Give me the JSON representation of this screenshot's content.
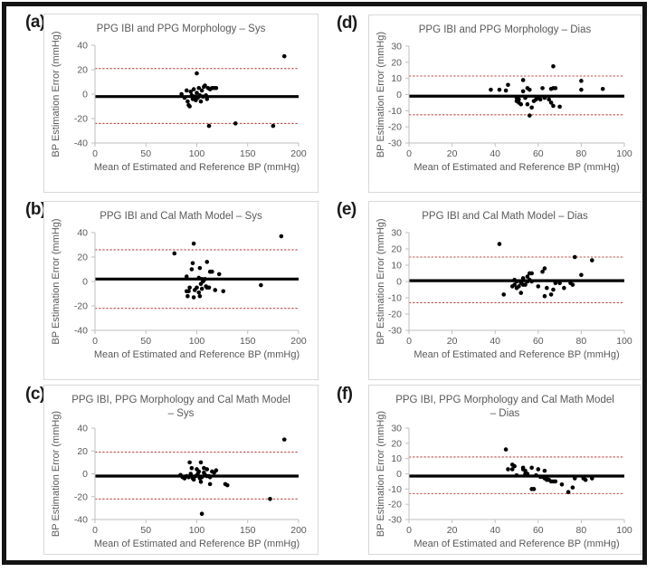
{
  "figure": {
    "x_axis_label": "Mean of Estimated and Reference BP (mmHg)",
    "y_axis_label": "BP Estimation Error (mmHg)",
    "colors": {
      "dot": "#000000",
      "mean_line": "#000000",
      "loa_line": "#c0504d",
      "axis_line": "#bfbfbf",
      "tick_text": "#595959",
      "title_text": "#595959",
      "frame_border": "#141414",
      "box_border": "#d9d9d9"
    }
  },
  "chart_data": [
    {
      "panel": "(a)",
      "type": "scatter",
      "title_line1": "PPG IBI and PPG Morphology – Sys",
      "title_line2": "",
      "xlabel": "Mean of Estimated and Reference BP (mmHg)",
      "ylabel": "BP Estimation Error (mmHg)",
      "xlim": [
        0,
        200
      ],
      "ylim": [
        -40,
        40
      ],
      "xticks": [
        0,
        50,
        100,
        150,
        200
      ],
      "yticks": [
        40,
        20,
        0,
        -20,
        -40
      ],
      "mean_bias": -2,
      "upper_loa": 21,
      "lower_loa": -24,
      "points": [
        [
          85,
          0
        ],
        [
          88,
          -3
        ],
        [
          90,
          3
        ],
        [
          91,
          -6
        ],
        [
          92,
          -9
        ],
        [
          93,
          -10
        ],
        [
          94,
          2
        ],
        [
          95,
          -1
        ],
        [
          96,
          -4
        ],
        [
          97,
          4
        ],
        [
          98,
          -2
        ],
        [
          99,
          -5
        ],
        [
          100,
          17
        ],
        [
          100,
          1
        ],
        [
          101,
          -3
        ],
        [
          102,
          5
        ],
        [
          103,
          -1
        ],
        [
          104,
          -6
        ],
        [
          105,
          3
        ],
        [
          106,
          -2
        ],
        [
          107,
          6
        ],
        [
          108,
          7
        ],
        [
          109,
          -1
        ],
        [
          110,
          -4
        ],
        [
          111,
          5
        ],
        [
          112,
          -26
        ],
        [
          113,
          4
        ],
        [
          115,
          5
        ],
        [
          117,
          5
        ],
        [
          119,
          5
        ],
        [
          138,
          -24
        ],
        [
          175,
          -26
        ],
        [
          186,
          31
        ]
      ]
    },
    {
      "panel": "(b)",
      "type": "scatter",
      "title_line1": "PPG IBI and Cal Math Model – Sys",
      "title_line2": "",
      "xlabel": "Mean of Estimated and Reference BP (mmHg)",
      "ylabel": "BP Estimation Error (mmHg)",
      "xlim": [
        0,
        200
      ],
      "ylim": [
        -40,
        40
      ],
      "xticks": [
        0,
        50,
        100,
        150,
        200
      ],
      "yticks": [
        40,
        20,
        0,
        -20,
        -40
      ],
      "mean_bias": 2,
      "upper_loa": 26,
      "lower_loa": -22,
      "points": [
        [
          78,
          23
        ],
        [
          90,
          4
        ],
        [
          90,
          -8
        ],
        [
          91,
          -12
        ],
        [
          92,
          -8
        ],
        [
          93,
          -5
        ],
        [
          95,
          10
        ],
        [
          96,
          15
        ],
        [
          97,
          31
        ],
        [
          97,
          -13
        ],
        [
          98,
          -7
        ],
        [
          100,
          -5
        ],
        [
          102,
          3
        ],
        [
          102,
          -9
        ],
        [
          103,
          11
        ],
        [
          103,
          -12
        ],
        [
          104,
          -2
        ],
        [
          105,
          2
        ],
        [
          105,
          -6
        ],
        [
          106,
          0
        ],
        [
          107,
          1
        ],
        [
          108,
          2
        ],
        [
          109,
          -4
        ],
        [
          110,
          16
        ],
        [
          110,
          -5
        ],
        [
          112,
          -5
        ],
        [
          113,
          8
        ],
        [
          115,
          8
        ],
        [
          118,
          -7
        ],
        [
          122,
          6
        ],
        [
          126,
          -8
        ],
        [
          163,
          -3
        ],
        [
          183,
          37
        ]
      ]
    },
    {
      "panel": "(c)",
      "type": "scatter",
      "title_line1": "PPG IBI, PPG Morphology and Cal Math Model",
      "title_line2": "– Sys",
      "xlabel": "Mean of Estimated and Reference BP (mmHg)",
      "ylabel": "BP Estimation Error (mmHg)",
      "xlim": [
        0,
        200
      ],
      "ylim": [
        -40,
        40
      ],
      "xticks": [
        0,
        50,
        100,
        150,
        200
      ],
      "yticks": [
        40,
        20,
        0,
        -20,
        -40
      ],
      "mean_bias": -2,
      "upper_loa": 19,
      "lower_loa": -22,
      "points": [
        [
          84,
          -1
        ],
        [
          86,
          -3
        ],
        [
          88,
          -4
        ],
        [
          90,
          -2
        ],
        [
          92,
          -3
        ],
        [
          93,
          10
        ],
        [
          94,
          0
        ],
        [
          95,
          5
        ],
        [
          96,
          -4
        ],
        [
          97,
          -5
        ],
        [
          99,
          -2
        ],
        [
          100,
          4
        ],
        [
          101,
          0
        ],
        [
          102,
          2
        ],
        [
          103,
          -4
        ],
        [
          104,
          10
        ],
        [
          104,
          -7
        ],
        [
          105,
          -35
        ],
        [
          105,
          -3
        ],
        [
          107,
          5
        ],
        [
          107,
          1
        ],
        [
          108,
          -1
        ],
        [
          110,
          4
        ],
        [
          110,
          -2
        ],
        [
          112,
          -2
        ],
        [
          113,
          -9
        ],
        [
          113,
          -3
        ],
        [
          115,
          2
        ],
        [
          117,
          1
        ],
        [
          119,
          3
        ],
        [
          128,
          -9
        ],
        [
          130,
          -10
        ],
        [
          172,
          -22
        ],
        [
          186,
          30
        ]
      ]
    },
    {
      "panel": "(d)",
      "type": "scatter",
      "title_line1": "PPG IBI and PPG Morphology – Dias",
      "title_line2": "",
      "xlabel": "Mean of Estimated and Reference BP (mmHg)",
      "ylabel": "BP Estimation Error (mmHg)",
      "xlim": [
        0,
        100
      ],
      "ylim": [
        -30,
        30
      ],
      "xticks": [
        0,
        20,
        40,
        60,
        80,
        100
      ],
      "yticks": [
        30,
        20,
        10,
        0,
        -10,
        -20,
        -30
      ],
      "mean_bias": -1,
      "upper_loa": 11.5,
      "lower_loa": -12.5,
      "points": [
        [
          38,
          3
        ],
        [
          42,
          3
        ],
        [
          45,
          2.5
        ],
        [
          46,
          6
        ],
        [
          50,
          -2
        ],
        [
          50,
          -4
        ],
        [
          51,
          -3
        ],
        [
          51,
          -5
        ],
        [
          52,
          -6
        ],
        [
          53,
          9
        ],
        [
          53,
          2
        ],
        [
          54,
          -2
        ],
        [
          55,
          4
        ],
        [
          55,
          -6
        ],
        [
          56,
          3
        ],
        [
          56,
          -13
        ],
        [
          57,
          -8
        ],
        [
          58,
          -4
        ],
        [
          59,
          -3
        ],
        [
          60,
          -2
        ],
        [
          61,
          -3
        ],
        [
          62,
          4
        ],
        [
          63,
          -2
        ],
        [
          65,
          -3
        ],
        [
          66,
          3.5
        ],
        [
          66,
          -5
        ],
        [
          67,
          17.5
        ],
        [
          67,
          4
        ],
        [
          67,
          -7
        ],
        [
          68,
          4
        ],
        [
          70,
          -7.5
        ],
        [
          80,
          8.5
        ],
        [
          80,
          3
        ],
        [
          90,
          3.5
        ]
      ]
    },
    {
      "panel": "(e)",
      "type": "scatter",
      "title_line1": "PPG IBI and Cal Math Model – Dias",
      "title_line2": "",
      "xlabel": "Mean of Estimated and Reference BP (mmHg)",
      "ylabel": "BP Estimation Error (mmHg)",
      "xlim": [
        0,
        100
      ],
      "ylim": [
        -30,
        30
      ],
      "xticks": [
        0,
        20,
        40,
        60,
        80,
        100
      ],
      "yticks": [
        30,
        20,
        10,
        0,
        -10,
        -20,
        -30
      ],
      "mean_bias": 0.5,
      "upper_loa": 15,
      "lower_loa": -13,
      "points": [
        [
          42,
          23
        ],
        [
          44,
          -8
        ],
        [
          48,
          -3
        ],
        [
          49,
          1
        ],
        [
          49,
          -2
        ],
        [
          50,
          0
        ],
        [
          50,
          -4
        ],
        [
          51,
          -3
        ],
        [
          52,
          -1
        ],
        [
          52,
          -7
        ],
        [
          53,
          2
        ],
        [
          53,
          -2
        ],
        [
          54,
          -2
        ],
        [
          55,
          3
        ],
        [
          55,
          0
        ],
        [
          56,
          5
        ],
        [
          56,
          1
        ],
        [
          57,
          5
        ],
        [
          57,
          0
        ],
        [
          60,
          -3
        ],
        [
          62,
          6
        ],
        [
          63,
          8
        ],
        [
          63,
          -9
        ],
        [
          64,
          -4
        ],
        [
          66,
          -8
        ],
        [
          67,
          -5
        ],
        [
          68,
          -1
        ],
        [
          70,
          -1
        ],
        [
          72,
          -4
        ],
        [
          75,
          -1
        ],
        [
          76,
          -2
        ],
        [
          77,
          15
        ],
        [
          80,
          4
        ],
        [
          85,
          13
        ]
      ]
    },
    {
      "panel": "(f)",
      "type": "scatter",
      "title_line1": "PPG IBI, PPG Morphology and Cal Math Model",
      "title_line2": "– Dias",
      "xlabel": "Mean of Estimated and Reference BP (mmHg)",
      "ylabel": "BP Estimation Error (mmHg)",
      "xlim": [
        0,
        100
      ],
      "ylim": [
        -30,
        30
      ],
      "xticks": [
        0,
        20,
        40,
        60,
        80,
        100
      ],
      "yticks": [
        30,
        20,
        10,
        0,
        -10,
        -20,
        -30
      ],
      "mean_bias": -1.5,
      "upper_loa": 11,
      "lower_loa": -13,
      "points": [
        [
          45,
          16
        ],
        [
          46,
          3
        ],
        [
          48,
          6
        ],
        [
          48,
          3
        ],
        [
          49,
          5
        ],
        [
          50,
          -1
        ],
        [
          53,
          4
        ],
        [
          53,
          3
        ],
        [
          54,
          2
        ],
        [
          54,
          0
        ],
        [
          55,
          0
        ],
        [
          57,
          4
        ],
        [
          57,
          -10
        ],
        [
          58,
          -10
        ],
        [
          59,
          -1
        ],
        [
          60,
          3
        ],
        [
          61,
          -2
        ],
        [
          62,
          -2
        ],
        [
          63,
          2
        ],
        [
          63,
          -3
        ],
        [
          64,
          -3
        ],
        [
          64,
          -4
        ],
        [
          65,
          -4
        ],
        [
          66,
          -5
        ],
        [
          67,
          -5
        ],
        [
          68,
          -5
        ],
        [
          71,
          -7
        ],
        [
          74,
          -12
        ],
        [
          76,
          -9
        ],
        [
          77,
          -3
        ],
        [
          81,
          -3
        ],
        [
          82,
          -4
        ],
        [
          85,
          -3
        ]
      ]
    }
  ]
}
